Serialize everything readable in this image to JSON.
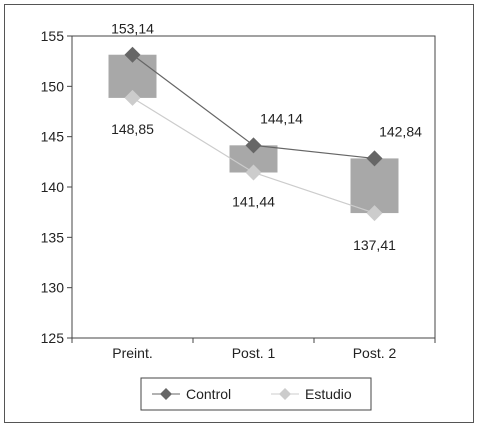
{
  "chart_data": {
    "type": "line",
    "categories": [
      "Preint.",
      "Post. 1",
      "Post. 2"
    ],
    "series": [
      {
        "name": "Control",
        "values": [
          153.14,
          144.14,
          142.84
        ],
        "labels": [
          "153,14",
          "144,14",
          "142,84"
        ],
        "color": "#666666",
        "marker": "diamond"
      },
      {
        "name": "Estudio",
        "values": [
          148.85,
          141.44,
          137.41
        ],
        "labels": [
          "148,85",
          "141,44",
          "137,41"
        ],
        "color": "#cccccc",
        "marker": "diamond"
      }
    ],
    "box_fill": "#a8a8a8",
    "ylim": [
      125,
      155
    ],
    "yticks": [
      125,
      130,
      135,
      140,
      145,
      150,
      155
    ],
    "ytick_labels": [
      "125",
      "130",
      "135",
      "140",
      "145",
      "150",
      "155"
    ],
    "grid": false,
    "legend": "bottom"
  }
}
